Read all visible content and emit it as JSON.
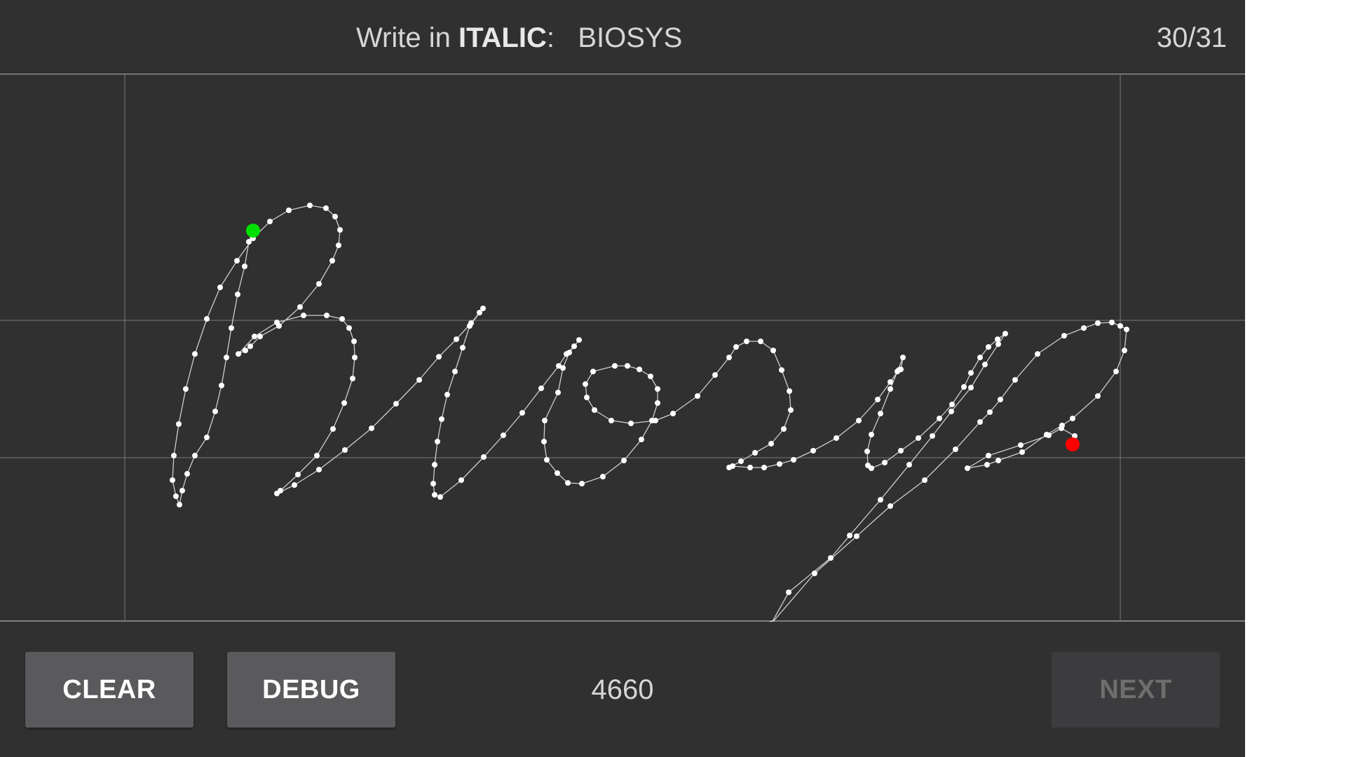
{
  "header": {
    "prompt_prefix": "Write in ",
    "style_word": "ITALIC",
    "prompt_separator": ":",
    "target_word": "BIOSYS",
    "counter": "30/31"
  },
  "canvas": {
    "stroke_color": "#cfcfcf",
    "point_color": "#ffffff",
    "guide_color": "#7a7a7a",
    "start_marker_color": "#00e000",
    "end_marker_color": "#ff0000"
  },
  "footer": {
    "clear_label": "CLEAR",
    "debug_label": "DEBUG",
    "score": "4660",
    "next_label": "NEXT",
    "next_enabled": false
  },
  "colors": {
    "background": "#303030",
    "button": "#5a5a5c",
    "button_disabled": "#3c3c3e"
  }
}
